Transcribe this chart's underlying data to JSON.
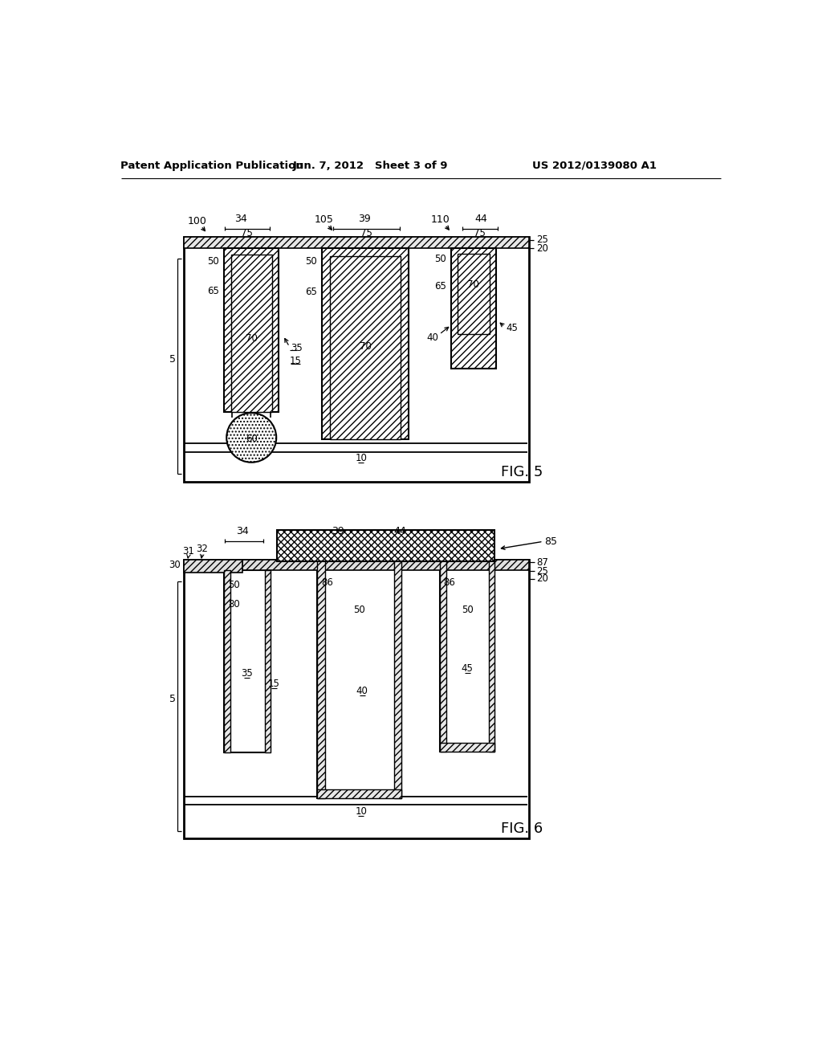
{
  "header_left": "Patent Application Publication",
  "header_center": "Jun. 7, 2012   Sheet 3 of 9",
  "header_right": "US 2012/0139080 A1",
  "fig5_label": "FIG. 5",
  "fig6_label": "FIG. 6",
  "bg_color": "#ffffff",
  "line_color": "#000000"
}
